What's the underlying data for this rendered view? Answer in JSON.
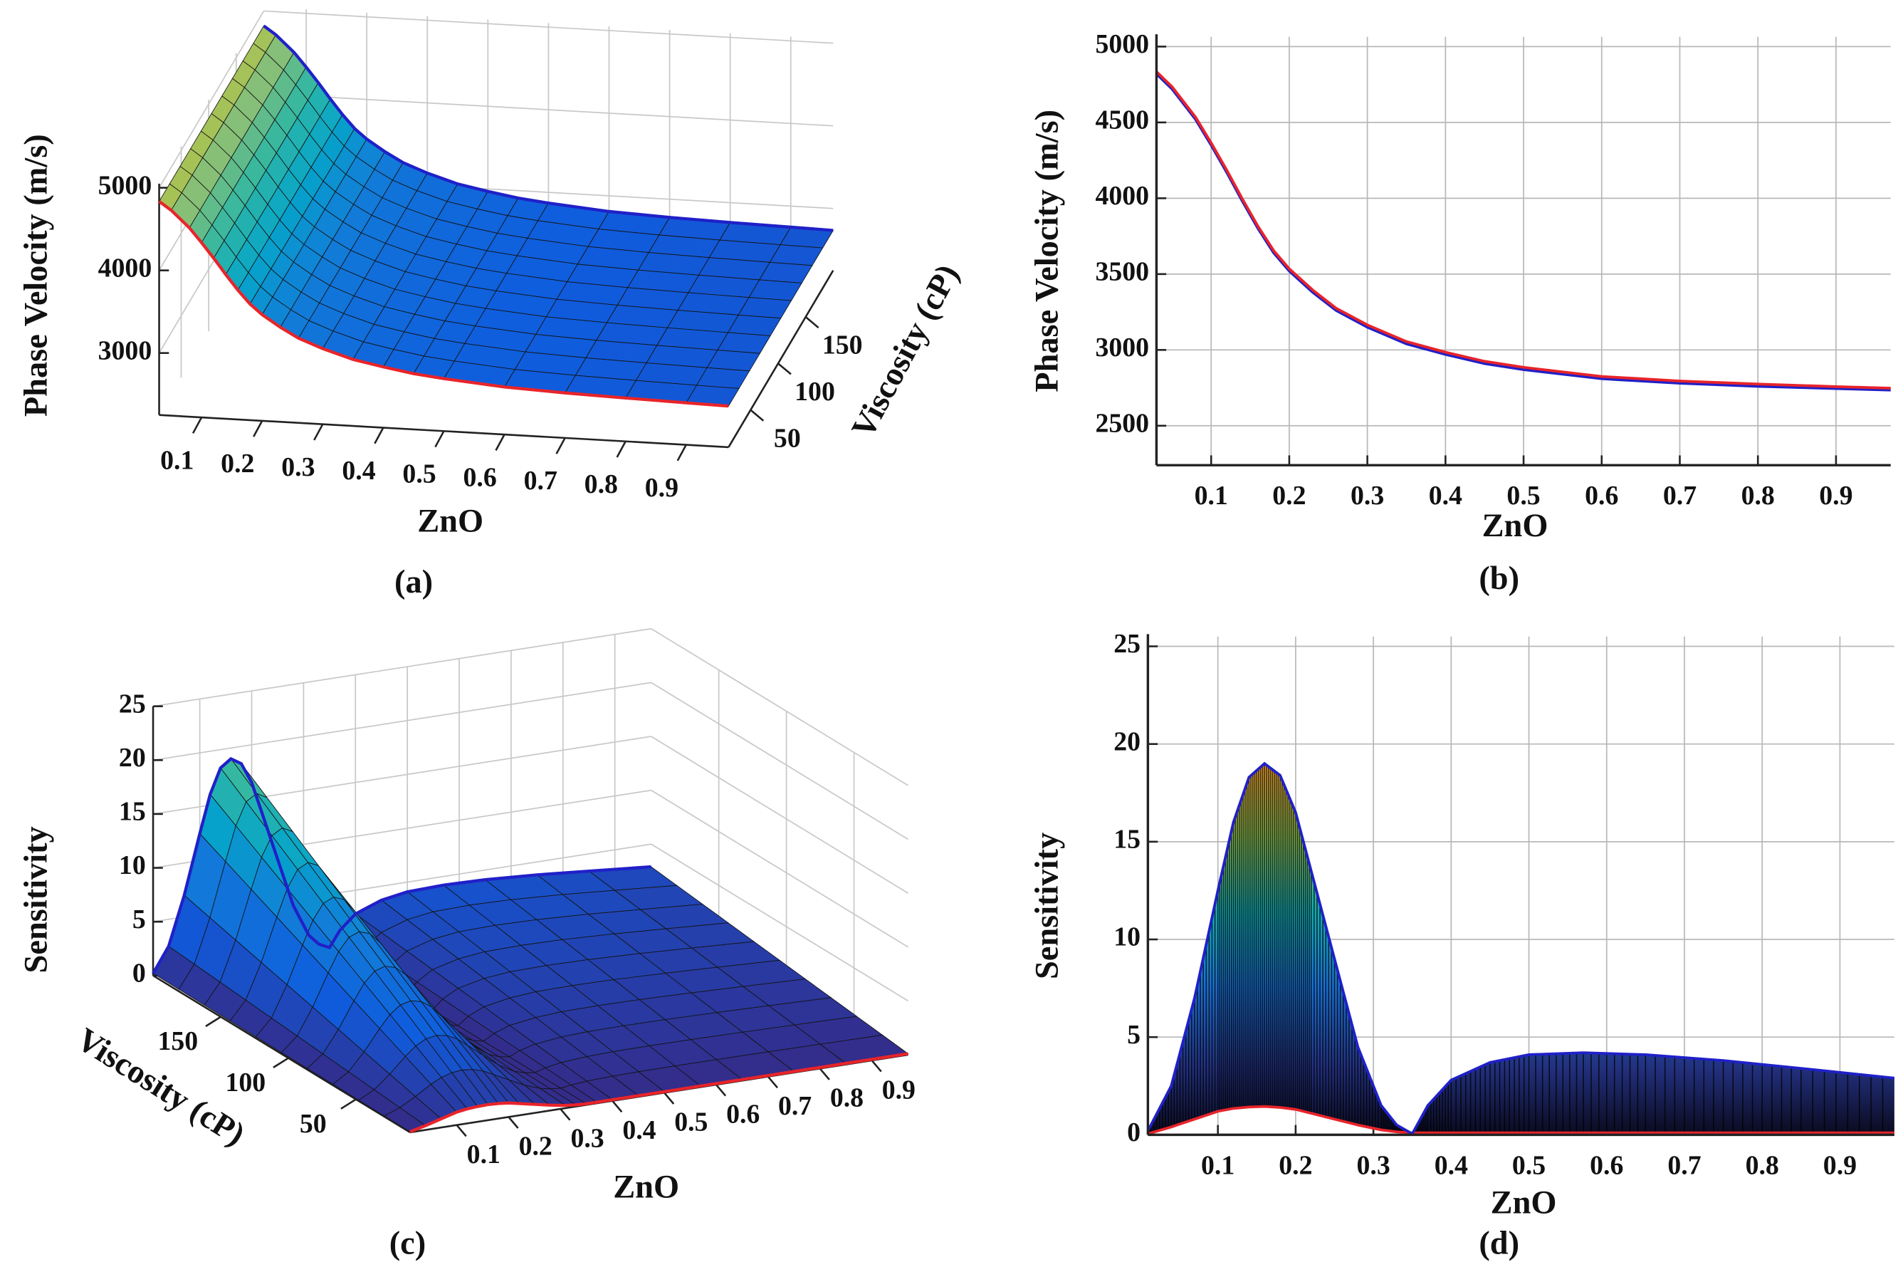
{
  "chart_data": [
    {
      "type": "surface",
      "caption": "(a)",
      "xlabel": "ZnO",
      "zlabel": "Phase Velocity (m/s)",
      "vlabel": "Viscosity (cP)",
      "x": [
        0.03,
        0.05,
        0.08,
        0.1,
        0.12,
        0.14,
        0.16,
        0.18,
        0.2,
        0.23,
        0.26,
        0.3,
        0.35,
        0.4,
        0.45,
        0.5,
        0.6,
        0.7,
        0.8,
        0.9,
        0.97
      ],
      "series": [
        {
          "color": "#e8242a",
          "values": [
            4835,
            4735,
            4535,
            4365,
            4185,
            3995,
            3815,
            3655,
            3535,
            3395,
            3275,
            3165,
            3055,
            2985,
            2925,
            2885,
            2825,
            2795,
            2775,
            2758,
            2748
          ]
        },
        {
          "color": "#2020c8",
          "values": [
            4820,
            4720,
            4520,
            4350,
            4170,
            3980,
            3800,
            3640,
            3520,
            3380,
            3260,
            3150,
            3040,
            2970,
            2910,
            2870,
            2810,
            2780,
            2760,
            2745,
            2735
          ]
        }
      ],
      "xlim": [
        0.03,
        0.97
      ],
      "xticks": [
        0.1,
        0.2,
        0.3,
        0.4,
        0.5,
        0.6,
        0.7,
        0.8,
        0.9
      ],
      "vlim": [
        10,
        200
      ],
      "vticks": [
        50,
        100,
        150
      ],
      "zlim": [
        2250,
        5050
      ],
      "zticks": [
        3000,
        4000,
        5000
      ],
      "grid": true
    },
    {
      "type": "line",
      "caption": "(b)",
      "xlabel": "ZnO",
      "ylabel": "Phase Velocity (m/s)",
      "x": [
        0.03,
        0.05,
        0.08,
        0.1,
        0.12,
        0.14,
        0.16,
        0.18,
        0.2,
        0.23,
        0.26,
        0.3,
        0.35,
        0.4,
        0.45,
        0.5,
        0.6,
        0.7,
        0.8,
        0.9,
        0.97
      ],
      "series": [
        {
          "color": "#e8242a",
          "values": [
            4835,
            4735,
            4535,
            4365,
            4185,
            3995,
            3815,
            3655,
            3535,
            3395,
            3275,
            3165,
            3055,
            2985,
            2925,
            2885,
            2825,
            2795,
            2775,
            2758,
            2748
          ]
        },
        {
          "color": "#2020c8",
          "values": [
            4820,
            4720,
            4520,
            4350,
            4170,
            3980,
            3800,
            3640,
            3520,
            3380,
            3260,
            3150,
            3040,
            2970,
            2910,
            2870,
            2810,
            2780,
            2760,
            2745,
            2735
          ]
        }
      ],
      "xlim": [
        0.03,
        0.97
      ],
      "xticks": [
        0.1,
        0.2,
        0.3,
        0.4,
        0.5,
        0.6,
        0.7,
        0.8,
        0.9
      ],
      "ylim": [
        2240,
        5065
      ],
      "yticks": [
        2500,
        3000,
        3500,
        4000,
        4500,
        5000
      ],
      "grid": true
    },
    {
      "type": "surface",
      "caption": "(c)",
      "xlabel": "ZnO",
      "zlabel": "Sensitivity",
      "vlabel": "Viscosity (cP)",
      "x": [
        0.01,
        0.04,
        0.07,
        0.1,
        0.12,
        0.14,
        0.16,
        0.18,
        0.2,
        0.22,
        0.25,
        0.28,
        0.31,
        0.33,
        0.35,
        0.37,
        0.4,
        0.45,
        0.5,
        0.57,
        0.65,
        0.75,
        0.85,
        0.97
      ],
      "series": [
        {
          "color": "#e8242a",
          "values": [
            0.05,
            0.4,
            0.8,
            1.2,
            1.35,
            1.42,
            1.45,
            1.4,
            1.3,
            1.1,
            0.8,
            0.5,
            0.25,
            0.15,
            0.1,
            0.1,
            0.1,
            0.1,
            0.1,
            0.1,
            0.1,
            0.1,
            0.1,
            0.1
          ]
        },
        {
          "color": "#2020c8",
          "values": [
            0.2,
            2.5,
            7,
            12.5,
            16,
            18.3,
            19,
            18.4,
            16.5,
            13.5,
            9,
            4.5,
            1.5,
            0.5,
            0.05,
            1.5,
            2.8,
            3.7,
            4.1,
            4.2,
            4.1,
            3.8,
            3.4,
            2.9
          ]
        }
      ],
      "xlim": [
        0.01,
        0.97
      ],
      "xticks": [
        0.1,
        0.2,
        0.3,
        0.4,
        0.5,
        0.6,
        0.7,
        0.8,
        0.9
      ],
      "vlim": [
        10,
        200
      ],
      "vticks": [
        50,
        100,
        150
      ],
      "zlim": [
        0,
        25
      ],
      "zticks": [
        0,
        5,
        10,
        15,
        20,
        25
      ],
      "grid": true
    },
    {
      "type": "area",
      "caption": "(d)",
      "xlabel": "ZnO",
      "ylabel": "Sensitivity",
      "x": [
        0.01,
        0.04,
        0.07,
        0.1,
        0.12,
        0.14,
        0.16,
        0.18,
        0.2,
        0.22,
        0.25,
        0.28,
        0.31,
        0.33,
        0.35,
        0.37,
        0.4,
        0.45,
        0.5,
        0.57,
        0.65,
        0.75,
        0.85,
        0.97
      ],
      "series": [
        {
          "color": "#e8242a",
          "values": [
            0.05,
            0.4,
            0.8,
            1.2,
            1.35,
            1.42,
            1.45,
            1.4,
            1.3,
            1.1,
            0.8,
            0.5,
            0.25,
            0.15,
            0.1,
            0.1,
            0.1,
            0.1,
            0.1,
            0.1,
            0.1,
            0.1,
            0.1,
            0.1
          ]
        },
        {
          "color": "#2020c8",
          "values": [
            0.2,
            2.5,
            7,
            12.5,
            16,
            18.3,
            19,
            18.4,
            16.5,
            13.5,
            9,
            4.5,
            1.5,
            0.5,
            0.05,
            1.5,
            2.8,
            3.7,
            4.1,
            4.2,
            4.1,
            3.8,
            3.4,
            2.9
          ]
        }
      ],
      "xlim": [
        0.01,
        0.97
      ],
      "xticks": [
        0.1,
        0.2,
        0.3,
        0.4,
        0.5,
        0.6,
        0.7,
        0.8,
        0.9
      ],
      "ylim": [
        0,
        25.5
      ],
      "yticks": [
        0,
        5,
        10,
        15,
        20,
        25
      ],
      "grid": true
    }
  ]
}
